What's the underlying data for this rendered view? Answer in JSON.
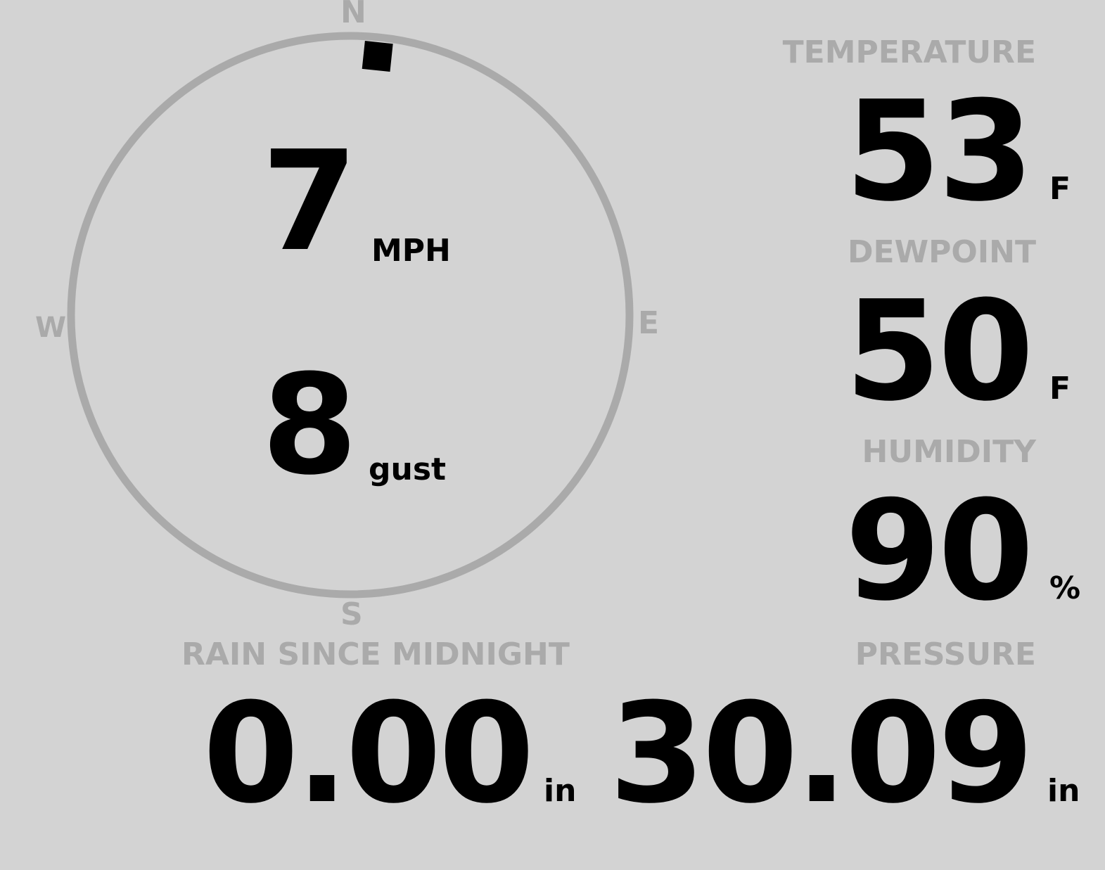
{
  "wind": {
    "direction_degrees": 6,
    "speed": "7",
    "speed_unit": "MPH",
    "gust": "8",
    "gust_unit": "gust",
    "compass": {
      "n": "N",
      "e": "E",
      "s": "S",
      "w": "W"
    }
  },
  "temperature": {
    "label": "TEMPERATURE",
    "value": "53",
    "unit": "F"
  },
  "dewpoint": {
    "label": "DEWPOINT",
    "value": "50",
    "unit": "F"
  },
  "humidity": {
    "label": "HUMIDITY",
    "value": "90",
    "unit": "%"
  },
  "pressure": {
    "label": "PRESSURE",
    "value": "30.09",
    "unit": "in"
  },
  "rain": {
    "label": "RAIN SINCE MIDNIGHT",
    "value": "0.00",
    "unit": "in"
  },
  "colors": {
    "background": "#d3d3d3",
    "muted": "#aaaaaa",
    "value": "#000000"
  }
}
